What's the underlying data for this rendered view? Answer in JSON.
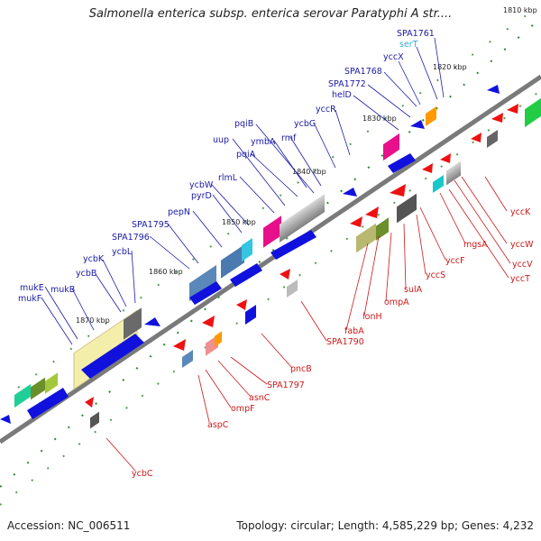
{
  "title": "Salmonella enterica subsp. enterica serovar Paratyphi A str....",
  "footer": {
    "accession": "Accession: NC_006511",
    "topology": "Topology: circular; Length: 4,585,229 bp; Genes: 4,232"
  },
  "scale_labels": [
    "1810 kbp",
    "1820 kbp",
    "1830 kbp",
    "1840 kbp",
    "1850 kbp",
    "1860 kbp",
    "1870 kbp"
  ],
  "genes_top": [
    "SPA1761",
    "serT",
    "yccX",
    "SPA1768",
    "SPA1772",
    "helD",
    "yccR",
    "ycbG",
    "pqiB",
    "rmf",
    "ymbA",
    "uup",
    "pqiA",
    "rlmL",
    "ycbW",
    "pyrD",
    "pepN",
    "SPA1795",
    "SPA1796",
    "ycbL",
    "ycbK",
    "ycbB",
    "mukB",
    "mukE",
    "mukF"
  ],
  "genes_bottom": [
    "yccK",
    "yccW",
    "mgsA",
    "yccV",
    "yccT",
    "yccF",
    "yccS",
    "sulA",
    "ompA",
    "lonH",
    "fabA",
    "SPA1790",
    "pncB",
    "SPA1797",
    "asnC",
    "ompF",
    "aspC",
    "ycbC"
  ],
  "colors": {
    "forward_label": "#1a1aa6",
    "reverse_label": "#cc1a1a",
    "rna_label": "#33aadd",
    "backbone": "#8a8a8a",
    "tick": "#2a8a2a"
  }
}
